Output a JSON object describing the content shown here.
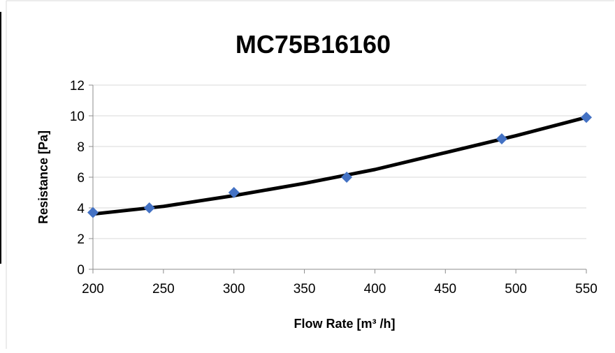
{
  "chart_data": {
    "type": "scatter",
    "title": "MC75B16160",
    "xlabel": "Flow Rate [m³ /h]",
    "ylabel": "Resistance [Pa]",
    "xlim": [
      200,
      550
    ],
    "ylim": [
      0,
      12
    ],
    "xticks": [
      200,
      250,
      300,
      350,
      400,
      450,
      500,
      550
    ],
    "yticks": [
      0,
      2,
      4,
      6,
      8,
      10,
      12
    ],
    "grid": "horizontal",
    "legend": "none",
    "series": [
      {
        "marker": "diamond",
        "color": "#4472C4",
        "points": [
          {
            "x": 200,
            "y": 3.7
          },
          {
            "x": 240,
            "y": 4.0
          },
          {
            "x": 300,
            "y": 5.0
          },
          {
            "x": 380,
            "y": 6.0
          },
          {
            "x": 490,
            "y": 8.5
          },
          {
            "x": 550,
            "y": 9.9
          }
        ]
      }
    ],
    "trendline": {
      "color": "#000000",
      "points": [
        {
          "x": 200,
          "y": 3.6
        },
        {
          "x": 250,
          "y": 4.1
        },
        {
          "x": 300,
          "y": 4.8
        },
        {
          "x": 350,
          "y": 5.6
        },
        {
          "x": 400,
          "y": 6.5
        },
        {
          "x": 450,
          "y": 7.6
        },
        {
          "x": 500,
          "y": 8.7
        },
        {
          "x": 550,
          "y": 9.9
        }
      ]
    }
  }
}
